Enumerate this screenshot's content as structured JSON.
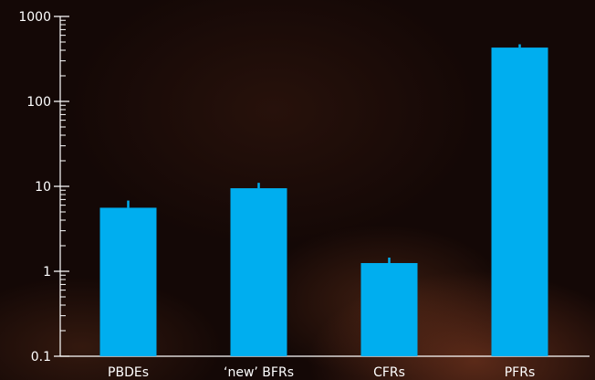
{
  "chart_data": {
    "type": "bar",
    "scale": "log",
    "categories": [
      "PBDEs",
      "‘new’ BFRs",
      "CFRs",
      "PFRs"
    ],
    "values": [
      5.6,
      9.5,
      1.25,
      430
    ],
    "error_upper": [
      6.8,
      11.0,
      1.45,
      470
    ],
    "ylim": [
      0.1,
      1000
    ],
    "yticks": [
      0.1,
      1,
      10,
      100,
      1000
    ],
    "ytick_labels": [
      "0.1",
      "1",
      "10",
      "100",
      "1000"
    ],
    "title": "",
    "xlabel": "",
    "ylabel": "",
    "grid": false,
    "colors": {
      "bar": "#00aeef",
      "axis": "#ffffff",
      "text": "#ffffff"
    }
  }
}
